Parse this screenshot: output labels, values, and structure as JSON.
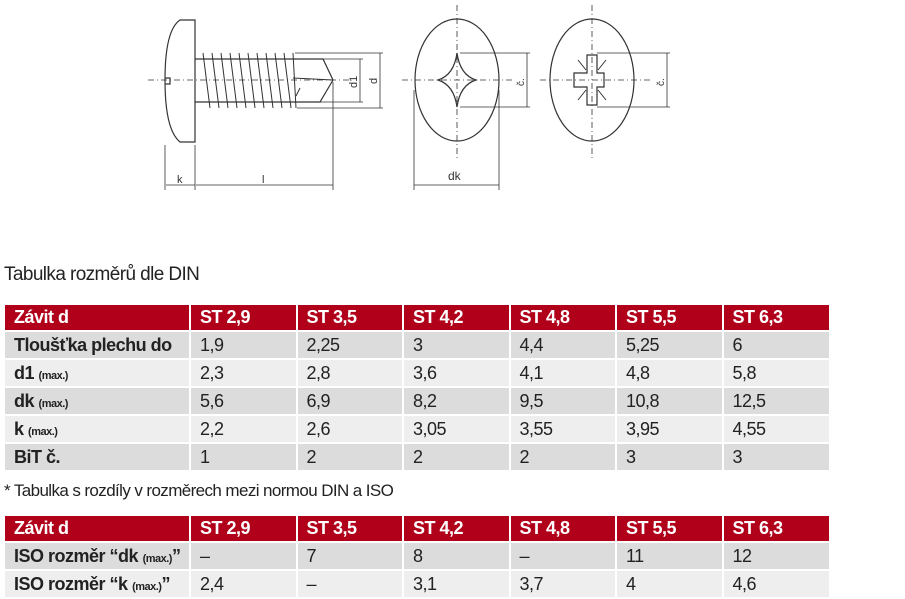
{
  "drawing": {
    "labels": {
      "k": "k",
      "l": "l",
      "d1": "d1",
      "d": "d",
      "dk": "dk",
      "c1": "č.",
      "c2": "č."
    }
  },
  "title": "Tabulka rozměrů dle DIN",
  "table1": {
    "header": [
      "Závit d",
      "ST 2,9",
      "ST 3,5",
      "ST 4,2",
      "ST 4,8",
      "ST 5,5",
      "ST 6,3"
    ],
    "rows": [
      {
        "label": "Tloušťka plechu do",
        "sub": "",
        "values": [
          "1,9",
          "2,25",
          "3",
          "4,4",
          "5,25",
          "6"
        ]
      },
      {
        "label": "d1",
        "sub": "(max.)",
        "values": [
          "2,3",
          "2,8",
          "3,6",
          "4,1",
          "4,8",
          "5,8"
        ]
      },
      {
        "label": "dk",
        "sub": "(max.)",
        "values": [
          "5,6",
          "6,9",
          "8,2",
          "9,5",
          "10,8",
          "12,5"
        ]
      },
      {
        "label": "k",
        "sub": "(max.)",
        "values": [
          "2,2",
          "2,6",
          "3,05",
          "3,55",
          "3,95",
          "4,55"
        ]
      },
      {
        "label": "BiT č.",
        "sub": "",
        "values": [
          "1",
          "2",
          "2",
          "2",
          "3",
          "3"
        ]
      }
    ]
  },
  "note": "* Tabulka s rozdíly v rozměrech mezi normou DIN a ISO",
  "table2": {
    "header": [
      "Závit d",
      "ST 2,9",
      "ST 3,5",
      "ST 4,2",
      "ST 4,8",
      "ST 5,5",
      "ST 6,3"
    ],
    "rows": [
      {
        "label": "ISO rozměr “dk",
        "sub": "(max.)",
        "close": "”",
        "values": [
          "–",
          "7",
          "8",
          "–",
          "11",
          "12"
        ]
      },
      {
        "label": "ISO rozměr “k",
        "sub": "(max.)",
        "close": "”",
        "values": [
          "2,4",
          "–",
          "3,1",
          "3,7",
          "4",
          "4,6"
        ]
      }
    ]
  }
}
